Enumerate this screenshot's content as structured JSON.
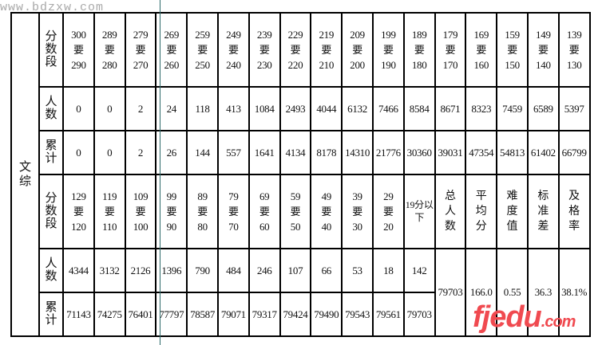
{
  "watermark_top": "www.bdzxw.com",
  "watermark_bottom": "fjedu.com",
  "category": "文综",
  "labels": {
    "range": "分数段",
    "count": "人数",
    "cum": "累计",
    "sep": "要"
  },
  "block1": {
    "ranges": [
      [
        "300",
        "290"
      ],
      [
        "289",
        "280"
      ],
      [
        "279",
        "270"
      ],
      [
        "269",
        "260"
      ],
      [
        "259",
        "250"
      ],
      [
        "249",
        "240"
      ],
      [
        "239",
        "230"
      ],
      [
        "229",
        "220"
      ],
      [
        "219",
        "210"
      ],
      [
        "209",
        "200"
      ],
      [
        "199",
        "190"
      ],
      [
        "189",
        "180"
      ],
      [
        "179",
        "170"
      ],
      [
        "169",
        "160"
      ],
      [
        "159",
        "150"
      ],
      [
        "149",
        "140"
      ],
      [
        "139",
        "130"
      ]
    ],
    "counts": [
      "0",
      "0",
      "2",
      "24",
      "118",
      "413",
      "1084",
      "2493",
      "4044",
      "6132",
      "7466",
      "8584",
      "8671",
      "8323",
      "7459",
      "6589",
      "5397"
    ],
    "cumulative": [
      "0",
      "0",
      "2",
      "26",
      "144",
      "557",
      "1641",
      "4134",
      "8178",
      "14310",
      "21776",
      "30360",
      "39031",
      "47354",
      "54813",
      "61402",
      "66799"
    ]
  },
  "block2": {
    "ranges": [
      [
        "129",
        "120"
      ],
      [
        "119",
        "110"
      ],
      [
        "109",
        "100"
      ],
      [
        "99",
        "90"
      ],
      [
        "89",
        "80"
      ],
      [
        "79",
        "70"
      ],
      [
        "69",
        "60"
      ],
      [
        "59",
        "50"
      ],
      [
        "49",
        "40"
      ],
      [
        "39",
        "30"
      ],
      [
        "29",
        "20"
      ]
    ],
    "below_label": "19分以下",
    "counts": [
      "4344",
      "3132",
      "2126",
      "1396",
      "790",
      "484",
      "246",
      "107",
      "66",
      "53",
      "18",
      "142"
    ],
    "cumulative": [
      "71143",
      "74275",
      "76401",
      "77797",
      "78587",
      "79071",
      "79317",
      "79424",
      "79490",
      "79543",
      "79561",
      "79703"
    ],
    "summary_headers": [
      "总人数",
      "平均分",
      "难度值",
      "标准差",
      "及格率"
    ],
    "summary_values": [
      "79703",
      "166.0",
      "0.55",
      "36.3",
      "38.1%"
    ]
  }
}
